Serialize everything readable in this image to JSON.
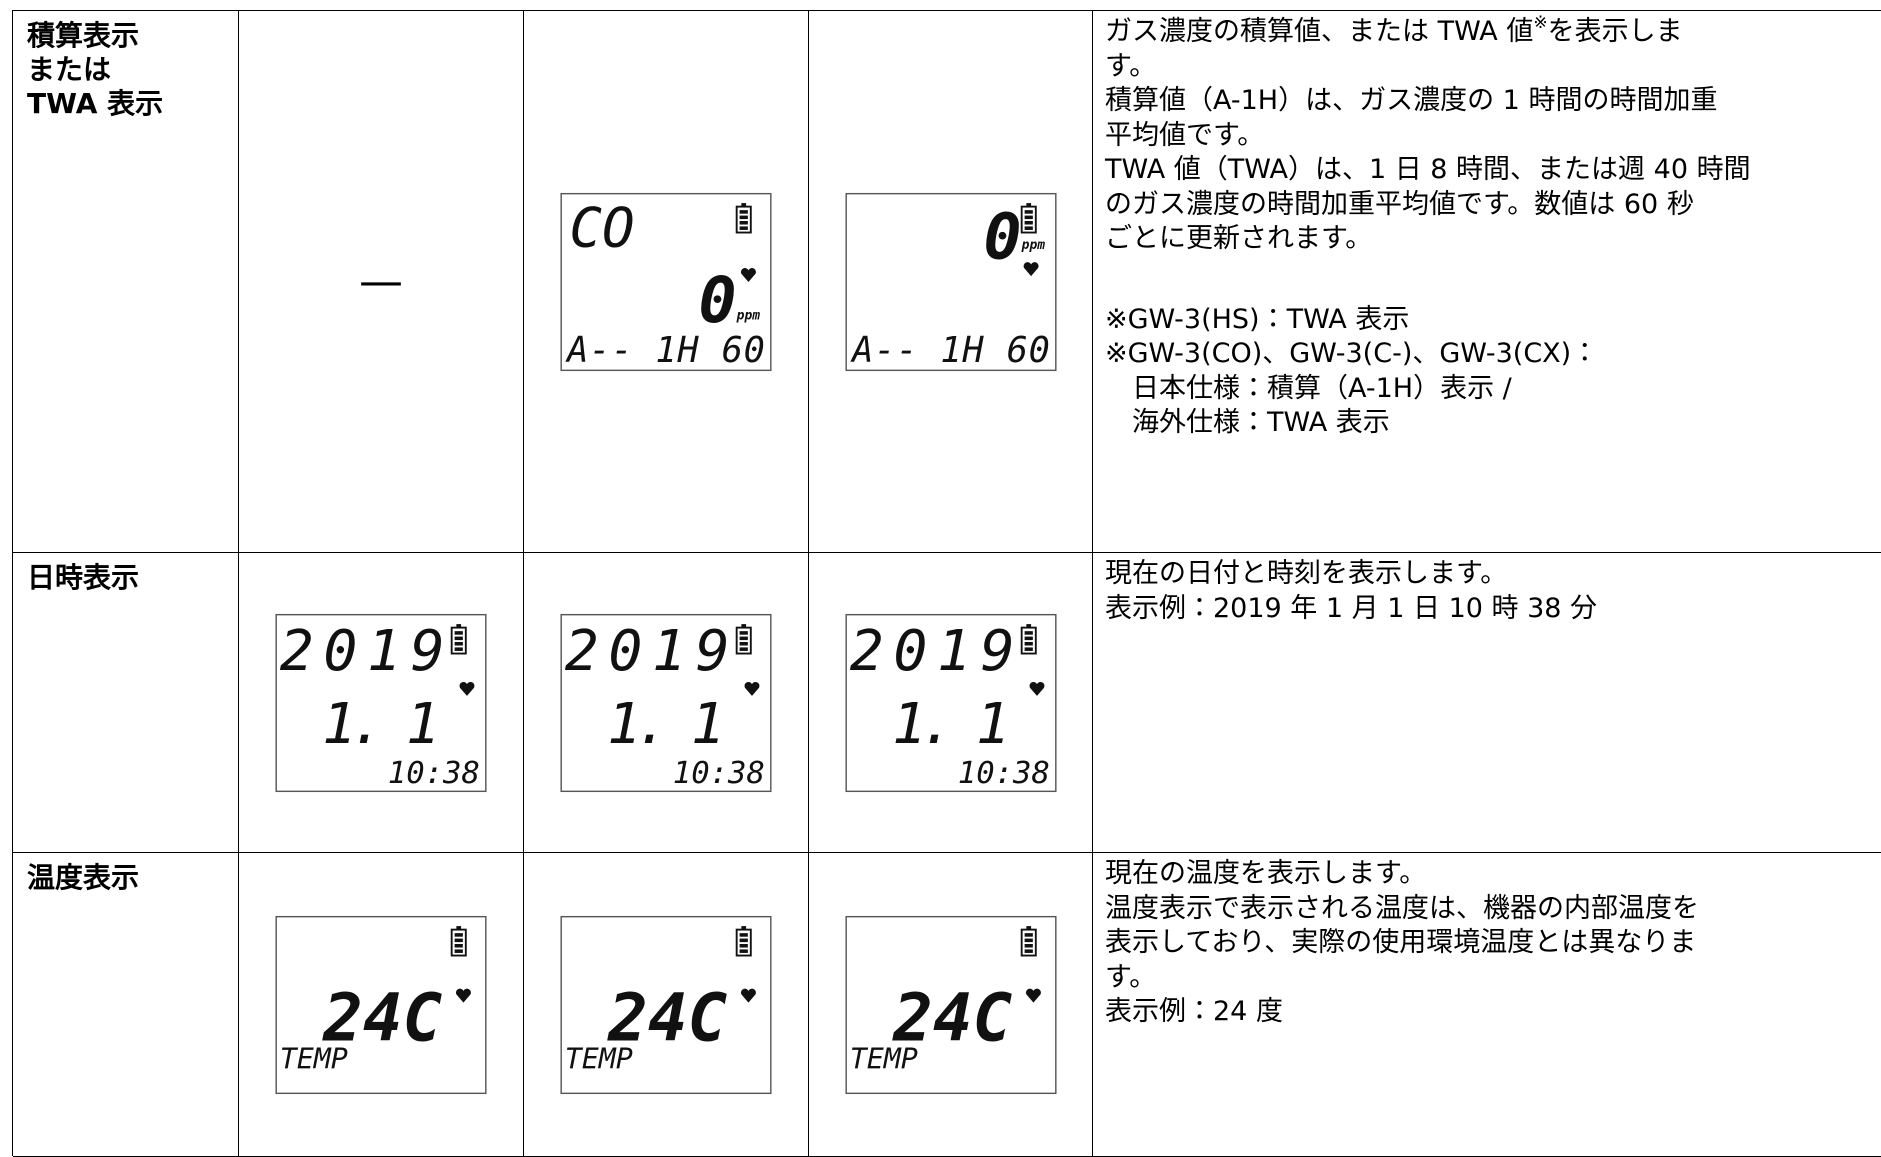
{
  "table": {
    "rows": [
      {
        "label": [
          "積算表示",
          "または",
          "TWA 表示"
        ],
        "cells": [
          {
            "text": "—"
          },
          {
            "gas": "CO",
            "value": "0",
            "unit": "ppm",
            "bottom": "A-- 1H 60"
          },
          {
            "value": "0",
            "unit": "ppm",
            "bottom": "A-- 1H 60"
          }
        ],
        "description": {
          "first": {
            "text": "ガス濃度の積算値、または TWA 値",
            "note": "※",
            "rest": "を表示しま"
          },
          "lines": [
            "す。",
            "積算値（A-1H）は、ガス濃度の 1 時間の時間加重",
            "平均値です。",
            "TWA 値（TWA）は、1 日 8 時間、または週 40 時間",
            "のガス濃度の時間加重平均値です。数値は 60 秒",
            "ごとに更新されます。"
          ],
          "notes": [
            "※GW-3(HS)：TWA 表示",
            "※GW-3(CO)、GW-3(C-)、GW-3(CX)：",
            "　日本仕様：積算（A-1H）表示 /",
            "　海外仕様：TWA 表示"
          ]
        }
      },
      {
        "label": [
          "日時表示"
        ],
        "cells": [
          {
            "year": "2019",
            "date": "1. 1",
            "time": "10:38"
          },
          {
            "year": "2019",
            "date": "1. 1",
            "time": "10:38"
          },
          {
            "year": "2019",
            "date": "1. 1",
            "time": "10:38"
          }
        ],
        "description": {
          "lines": [
            "現在の日付と時刻を表示します。",
            "表示例：2019 年 1 月 1 日 10 時 38 分"
          ]
        }
      },
      {
        "label": [
          "温度表示"
        ],
        "cells": [
          {
            "temp": "24C",
            "mode": "TEMP"
          },
          {
            "temp": "24C",
            "mode": "TEMP"
          },
          {
            "temp": "24C",
            "mode": "TEMP"
          }
        ],
        "description": {
          "lines": [
            "現在の温度を表示します。",
            "温度表示で表示される温度は、機器の内部温度を",
            "表示しており、実際の使用環境温度とは異なりま",
            "す。",
            "表示例：24 度"
          ]
        }
      }
    ]
  }
}
